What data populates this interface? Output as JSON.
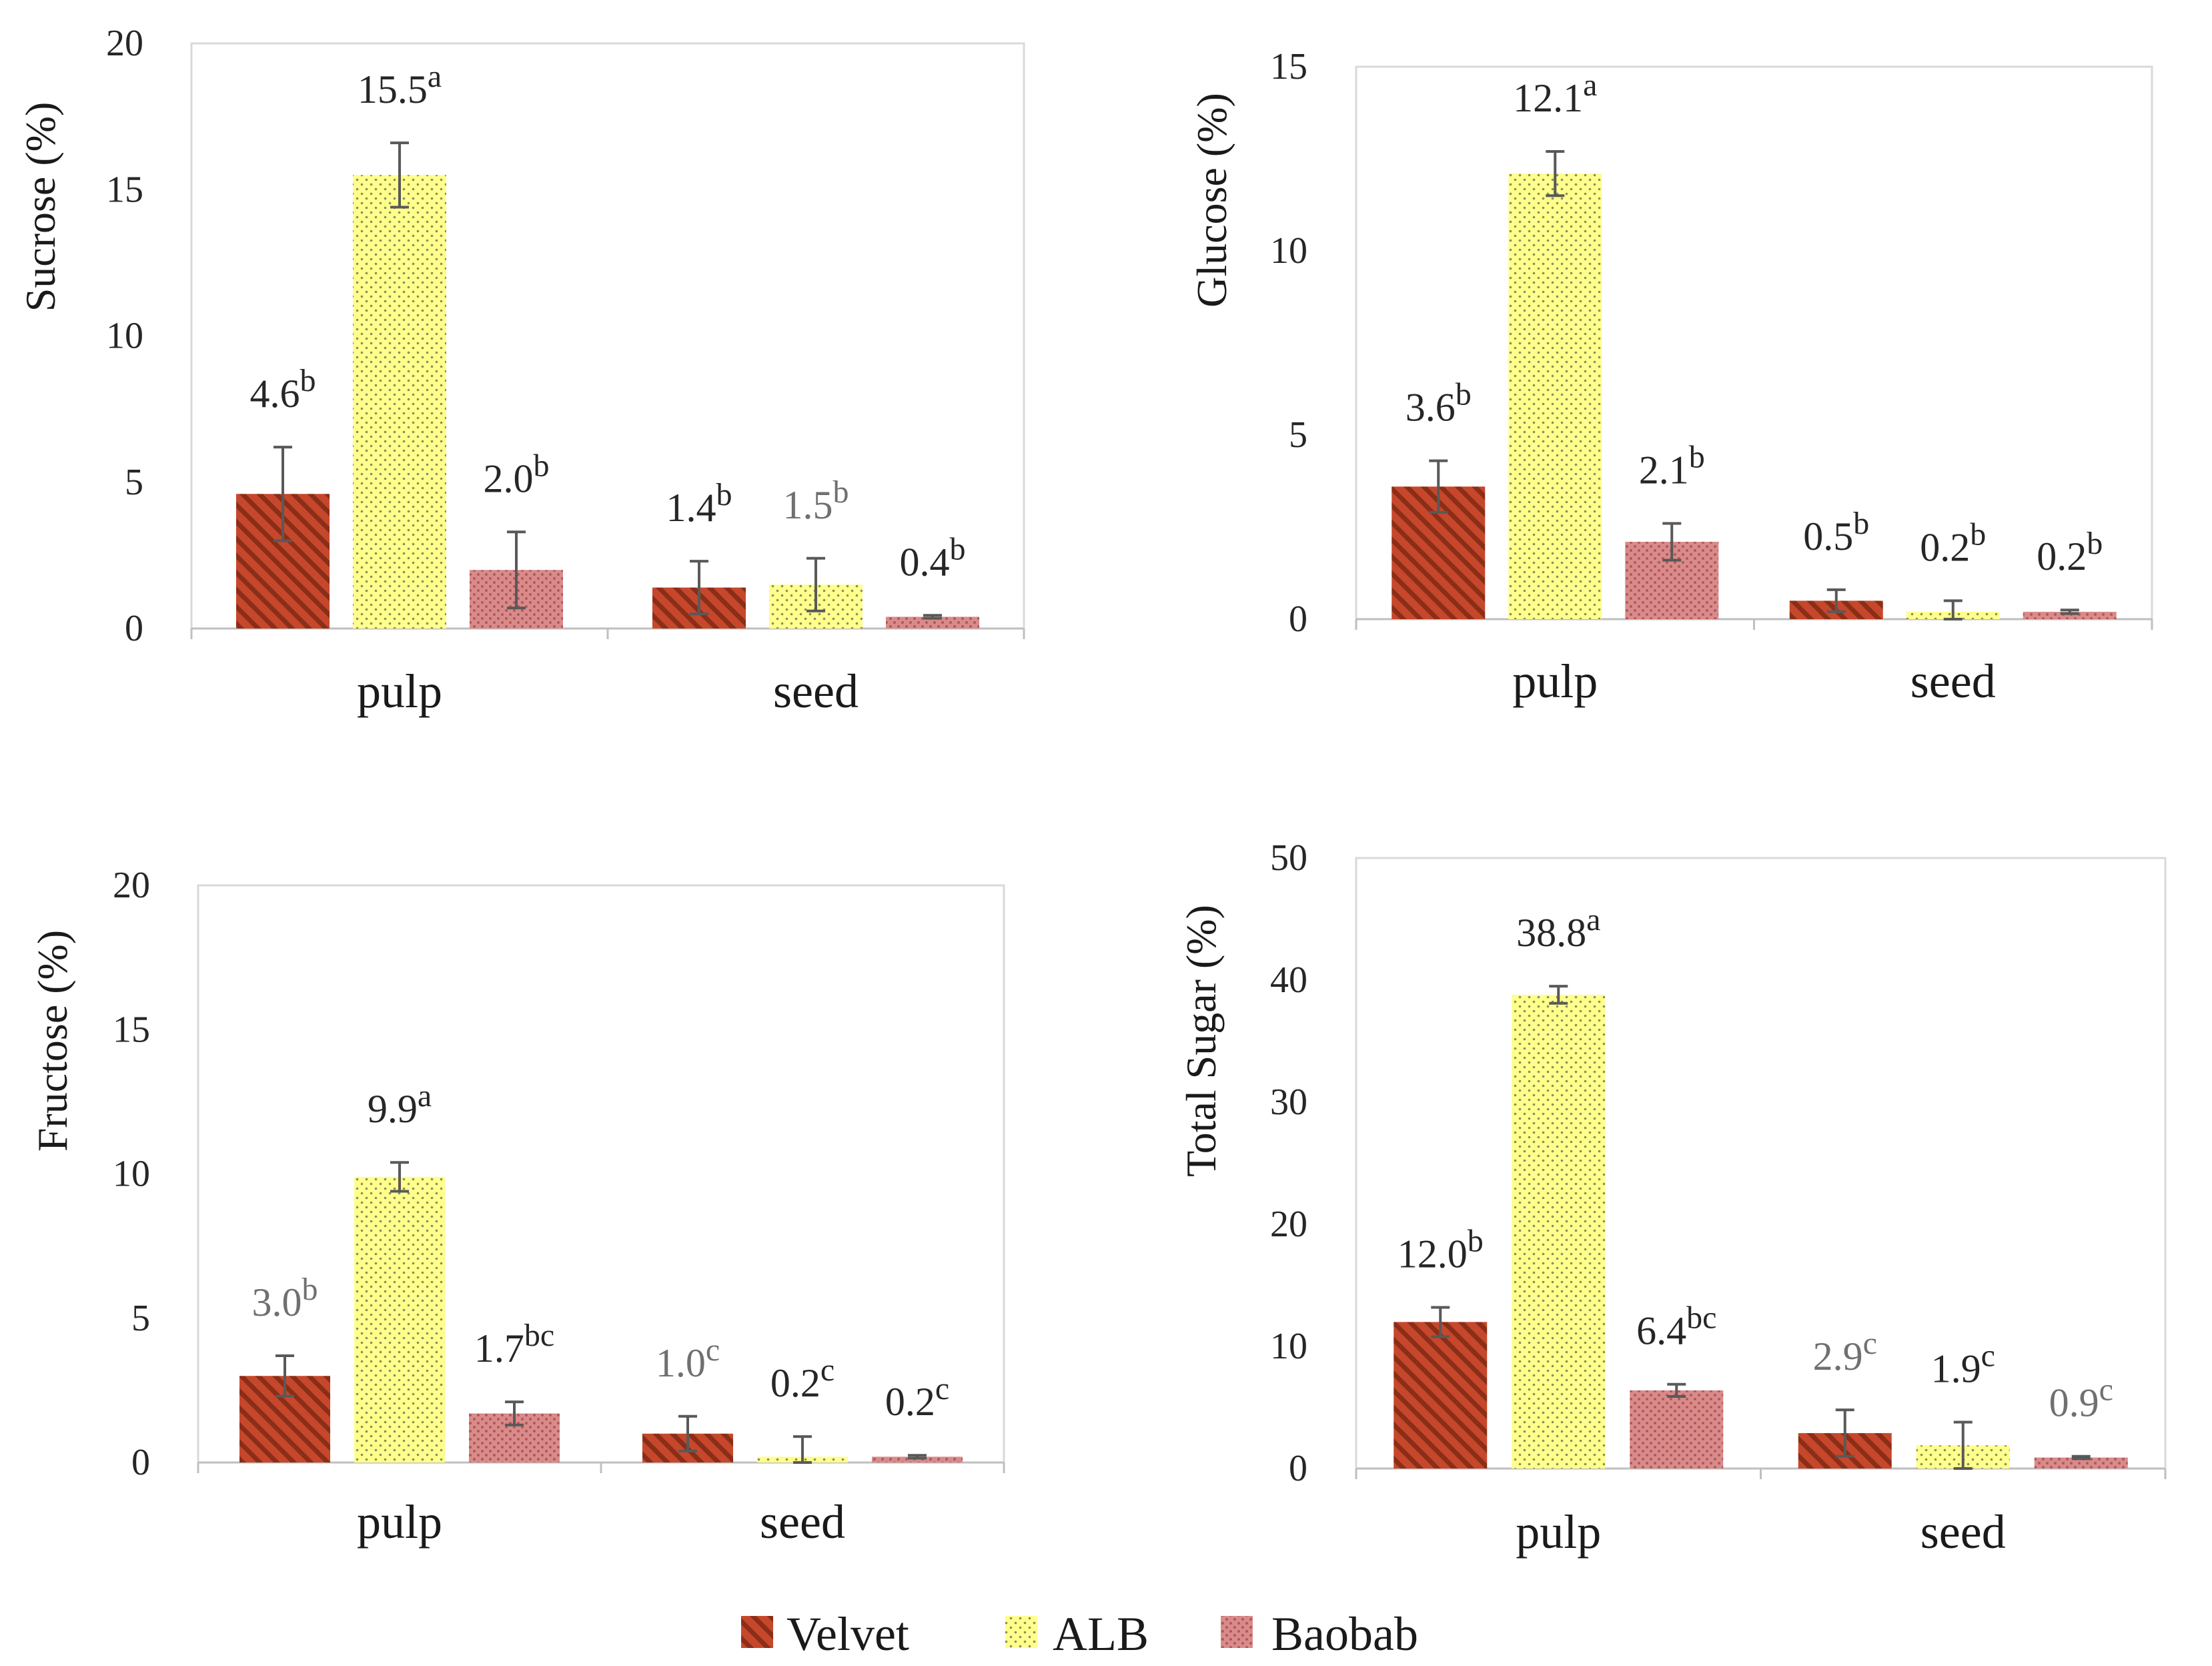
{
  "colors": {
    "velvet_base": "#c6472b",
    "velvet_stripe": "#8a2e17",
    "alb_base": "#ffff8c",
    "alb_dot": "#8c8c5a",
    "baobab_base": "#d98a8a",
    "baobab_dot": "#b05858",
    "axis": "#bfbfbf",
    "errorbar": "#595959"
  },
  "legend": [
    {
      "name": "Velvet",
      "pattern": "velvet"
    },
    {
      "name": "ALB",
      "pattern": "alb"
    },
    {
      "name": "Baobab",
      "pattern": "baobab"
    }
  ],
  "chart_data": [
    {
      "type": "bar",
      "panel": "top-left",
      "ylabel": "Sucrose (%)",
      "ylim": [
        0,
        20
      ],
      "yticks": [
        "0",
        "5",
        "10",
        "15",
        "20"
      ],
      "categories": [
        "pulp",
        "seed"
      ],
      "series": [
        {
          "name": "Velvet",
          "values": [
            4.6,
            1.4
          ],
          "errors": [
            1.6,
            0.9
          ],
          "labels": [
            "4.6",
            "1.4"
          ],
          "letters": [
            "b",
            "b"
          ],
          "label_grey": [
            false,
            false
          ]
        },
        {
          "name": "ALB",
          "values": [
            15.5,
            1.5
          ],
          "errors": [
            1.1,
            0.9
          ],
          "labels": [
            "15.5",
            "1.5"
          ],
          "letters": [
            "a",
            "b"
          ],
          "label_grey": [
            false,
            true
          ]
        },
        {
          "name": "Baobab",
          "values": [
            2.0,
            0.4
          ],
          "errors": [
            1.3,
            0.05
          ],
          "labels": [
            "2.0",
            "0.4"
          ],
          "letters": [
            "b",
            "b"
          ],
          "label_grey": [
            false,
            false
          ]
        }
      ]
    },
    {
      "type": "bar",
      "panel": "top-right",
      "ylabel": "Glucose (%)",
      "ylim": [
        0,
        15
      ],
      "yticks": [
        "0",
        "5",
        "10",
        "15"
      ],
      "categories": [
        "pulp",
        "seed"
      ],
      "series": [
        {
          "name": "Velvet",
          "values": [
            3.6,
            0.5
          ],
          "errors": [
            0.7,
            0.3
          ],
          "labels": [
            "3.6",
            "0.5"
          ],
          "letters": [
            "b",
            "b"
          ],
          "label_grey": [
            false,
            false
          ]
        },
        {
          "name": "ALB",
          "values": [
            12.1,
            0.2
          ],
          "errors": [
            0.6,
            0.3
          ],
          "labels": [
            "12.1",
            "0.2"
          ],
          "letters": [
            "a",
            "b"
          ],
          "label_grey": [
            false,
            false
          ]
        },
        {
          "name": "Baobab",
          "values": [
            2.1,
            0.2
          ],
          "errors": [
            0.5,
            0.05
          ],
          "labels": [
            "2.1",
            "0.2"
          ],
          "letters": [
            "b",
            "b"
          ],
          "label_grey": [
            false,
            false
          ]
        }
      ]
    },
    {
      "type": "bar",
      "panel": "bottom-left",
      "ylabel": "Fructose (%)",
      "ylim": [
        0,
        20
      ],
      "yticks": [
        "0",
        "5",
        "10",
        "15",
        "20"
      ],
      "categories": [
        "pulp",
        "seed"
      ],
      "series": [
        {
          "name": "Velvet",
          "values": [
            3.0,
            1.0
          ],
          "errors": [
            0.7,
            0.6
          ],
          "labels": [
            "3.0",
            "1.0"
          ],
          "letters": [
            "b",
            "c"
          ],
          "label_grey": [
            true,
            true
          ]
        },
        {
          "name": "ALB",
          "values": [
            9.9,
            0.2
          ],
          "errors": [
            0.5,
            0.7
          ],
          "labels": [
            "9.9",
            "0.2"
          ],
          "letters": [
            "a",
            "c"
          ],
          "label_grey": [
            false,
            false
          ]
        },
        {
          "name": "Baobab",
          "values": [
            1.7,
            0.2
          ],
          "errors": [
            0.4,
            0.05
          ],
          "labels": [
            "1.7",
            "0.2"
          ],
          "letters": [
            "bc",
            "c"
          ],
          "label_grey": [
            false,
            false
          ]
        }
      ]
    },
    {
      "type": "bar",
      "panel": "bottom-right",
      "ylabel": "Total Sugar (%)",
      "ylim": [
        0,
        50
      ],
      "yticks": [
        "0",
        "10",
        "20",
        "30",
        "40",
        "50"
      ],
      "categories": [
        "pulp",
        "seed"
      ],
      "series": [
        {
          "name": "Velvet",
          "values": [
            12.0,
            2.9
          ],
          "errors": [
            1.2,
            1.9
          ],
          "labels": [
            "12.0",
            "2.9"
          ],
          "letters": [
            "b",
            "c"
          ],
          "label_grey": [
            false,
            true
          ]
        },
        {
          "name": "ALB",
          "values": [
            38.8,
            1.9
          ],
          "errors": [
            0.7,
            1.9
          ],
          "labels": [
            "38.8",
            "1.9"
          ],
          "letters": [
            "a",
            "c"
          ],
          "label_grey": [
            false,
            false
          ]
        },
        {
          "name": "Baobab",
          "values": [
            6.4,
            0.9
          ],
          "errors": [
            0.5,
            0.1
          ],
          "labels": [
            "6.4",
            "0.9"
          ],
          "letters": [
            "bc",
            "c"
          ],
          "label_grey": [
            false,
            true
          ]
        }
      ]
    }
  ]
}
